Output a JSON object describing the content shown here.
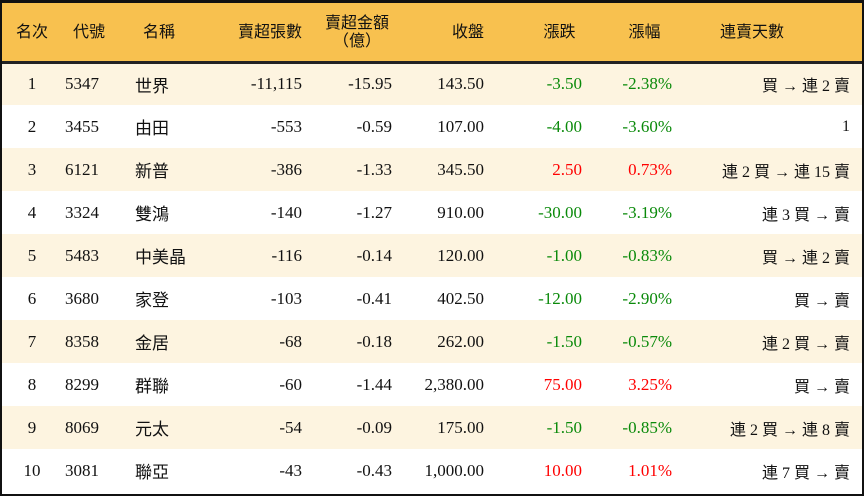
{
  "colors": {
    "header": "#F8C14F",
    "stripe": "#FDF4E0",
    "down": "#0a8a0a",
    "up": "#ff0000"
  },
  "headers": [
    "名次",
    "代號",
    "名稱",
    "賣超張數",
    "賣超金額",
    "（億）",
    "收盤",
    "漲跌",
    "漲幅",
    "連賣天數"
  ],
  "rows": [
    [
      "1",
      "5347",
      "世界",
      "-11,115",
      "-15.95",
      "143.50",
      "-3.50",
      "-2.38%",
      "買 → 連 2 賣",
      "down"
    ],
    [
      "2",
      "3455",
      "由田",
      "-553",
      "-0.59",
      "107.00",
      "-4.00",
      "-3.60%",
      "1",
      "down"
    ],
    [
      "3",
      "6121",
      "新普",
      "-386",
      "-1.33",
      "345.50",
      "2.50",
      "0.73%",
      "連 2 買 → 連 15 賣",
      "up"
    ],
    [
      "4",
      "3324",
      "雙鴻",
      "-140",
      "-1.27",
      "910.00",
      "-30.00",
      "-3.19%",
      "連 3 買 → 賣",
      "down"
    ],
    [
      "5",
      "5483",
      "中美晶",
      "-116",
      "-0.14",
      "120.00",
      "-1.00",
      "-0.83%",
      "買 → 連 2 賣",
      "down"
    ],
    [
      "6",
      "3680",
      "家登",
      "-103",
      "-0.41",
      "402.50",
      "-12.00",
      "-2.90%",
      "買 → 賣",
      "down"
    ],
    [
      "7",
      "8358",
      "金居",
      "-68",
      "-0.18",
      "262.00",
      "-1.50",
      "-0.57%",
      "連 2 買 → 賣",
      "down"
    ],
    [
      "8",
      "8299",
      "群聯",
      "-60",
      "-1.44",
      "2,380.00",
      "75.00",
      "3.25%",
      "買 → 賣",
      "up"
    ],
    [
      "9",
      "8069",
      "元太",
      "-54",
      "-0.09",
      "175.00",
      "-1.50",
      "-0.85%",
      "連 2 買 → 連 8 賣",
      "down"
    ],
    [
      "10",
      "3081",
      "聯亞",
      "-43",
      "-0.43",
      "1,000.00",
      "10.00",
      "1.01%",
      "連 7 買 → 賣",
      "up"
    ]
  ]
}
